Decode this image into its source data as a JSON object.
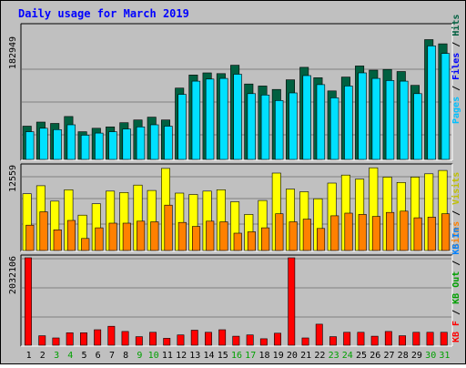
{
  "title": "Daily usage for March 2019",
  "colors": {
    "frame": "#c0c0c0",
    "hits": "#006040",
    "files": "#00e0ff",
    "pages": "#00c0ff",
    "visits": "#ffff00",
    "sites": "#ff8000",
    "kbin": "#0080ff",
    "kbout": "#00a000",
    "kbf": "#ff0000",
    "title": "#0000ff",
    "text": "#000000",
    "green_day": "#00a000"
  },
  "chart_data": [
    {
      "type": "bar",
      "panel": "hits-files-pages",
      "categories": [
        "1",
        "2",
        "3",
        "4",
        "5",
        "6",
        "7",
        "8",
        "9",
        "10",
        "11",
        "12",
        "13",
        "14",
        "15",
        "16",
        "17",
        "18",
        "19",
        "20",
        "21",
        "22",
        "23",
        "24",
        "25",
        "26",
        "27",
        "28",
        "29",
        "30",
        "31"
      ],
      "y_tick_label": "182949",
      "series": [
        {
          "name": "Hits",
          "values": [
            48000,
            54000,
            52000,
            62000,
            40000,
            45000,
            47000,
            53000,
            57000,
            61000,
            57000,
            103000,
            122000,
            125000,
            124000,
            136000,
            109000,
            106000,
            101000,
            115000,
            133000,
            118000,
            99000,
            119000,
            135000,
            129000,
            130000,
            127000,
            107000,
            173000,
            167000
          ]
        },
        {
          "name": "Files",
          "values": [
            40000,
            45000,
            43000,
            50000,
            35000,
            38000,
            40000,
            44000,
            47000,
            50000,
            48000,
            94000,
            113000,
            116000,
            117000,
            123000,
            95000,
            93000,
            85000,
            96000,
            121000,
            108000,
            89000,
            106000,
            125000,
            117000,
            114000,
            113000,
            95000,
            164000,
            153000
          ]
        },
        {
          "name": "Pages",
          "values": [
            40000,
            45000,
            43000,
            50000,
            35000,
            38000,
            40000,
            44000,
            47000,
            50000,
            48000,
            94000,
            113000,
            116000,
            117000,
            123000,
            95000,
            93000,
            85000,
            96000,
            121000,
            108000,
            89000,
            106000,
            125000,
            117000,
            114000,
            113000,
            95000,
            164000,
            153000
          ]
        }
      ],
      "ylabel_parts": [
        "Pages",
        "Files",
        "Hits"
      ]
    },
    {
      "type": "bar",
      "panel": "visits-sites",
      "categories": [
        "1",
        "2",
        "3",
        "4",
        "5",
        "6",
        "7",
        "8",
        "9",
        "10",
        "11",
        "12",
        "13",
        "14",
        "15",
        "16",
        "17",
        "18",
        "19",
        "20",
        "21",
        "22",
        "23",
        "24",
        "25",
        "26",
        "27",
        "28",
        "29",
        "30",
        "31"
      ],
      "y_tick_label": "12559",
      "series": [
        {
          "name": "Visits",
          "values": [
            8500,
            9700,
            7400,
            9100,
            5300,
            7000,
            8900,
            8700,
            9800,
            9000,
            12300,
            8600,
            8400,
            8900,
            9100,
            7300,
            5400,
            7500,
            11600,
            9200,
            8800,
            7750,
            10100,
            11300,
            10700,
            12400,
            11000,
            10200,
            11000,
            11500,
            12000
          ]
        },
        {
          "name": "Sites",
          "values": [
            3800,
            5800,
            3100,
            4500,
            1800,
            3400,
            4100,
            4100,
            4400,
            4300,
            6800,
            4200,
            3600,
            4400,
            4300,
            2600,
            2800,
            3400,
            5500,
            4300,
            4700,
            3300,
            5200,
            5600,
            5400,
            5100,
            5700,
            5900,
            4900,
            5000,
            5500
          ]
        }
      ],
      "ylabel_parts": [
        "Sites",
        "Visits"
      ]
    },
    {
      "type": "bar",
      "panel": "kbytes",
      "categories": [
        "1",
        "2",
        "3",
        "4",
        "5",
        "6",
        "7",
        "8",
        "9",
        "10",
        "11",
        "12",
        "13",
        "14",
        "15",
        "16",
        "17",
        "18",
        "19",
        "20",
        "21",
        "22",
        "23",
        "24",
        "25",
        "26",
        "27",
        "28",
        "29",
        "30",
        "31"
      ],
      "y_tick_label": "2032106",
      "series": [
        {
          "name": "KB F",
          "values": [
            2032106,
            220000,
            170000,
            290000,
            290000,
            360000,
            440000,
            320000,
            200000,
            300000,
            160000,
            240000,
            350000,
            300000,
            360000,
            210000,
            240000,
            150000,
            280000,
            2032106,
            170000,
            490000,
            200000,
            300000,
            300000,
            210000,
            320000,
            220000,
            300000,
            300000,
            300000
          ]
        }
      ],
      "ylabel_parts": [
        "KB F",
        "KB Out",
        "KB In"
      ]
    }
  ],
  "day_colors": [
    "#000000",
    "#000000",
    "#00a000",
    "#00a000",
    "#000000",
    "#000000",
    "#000000",
    "#000000",
    "#00a000",
    "#00a000",
    "#000000",
    "#000000",
    "#000000",
    "#000000",
    "#000000",
    "#00a000",
    "#00a000",
    "#000000",
    "#000000",
    "#000000",
    "#000000",
    "#000000",
    "#00a000",
    "#00a000",
    "#000000",
    "#000000",
    "#000000",
    "#000000",
    "#000000",
    "#00a000",
    "#00a000"
  ]
}
